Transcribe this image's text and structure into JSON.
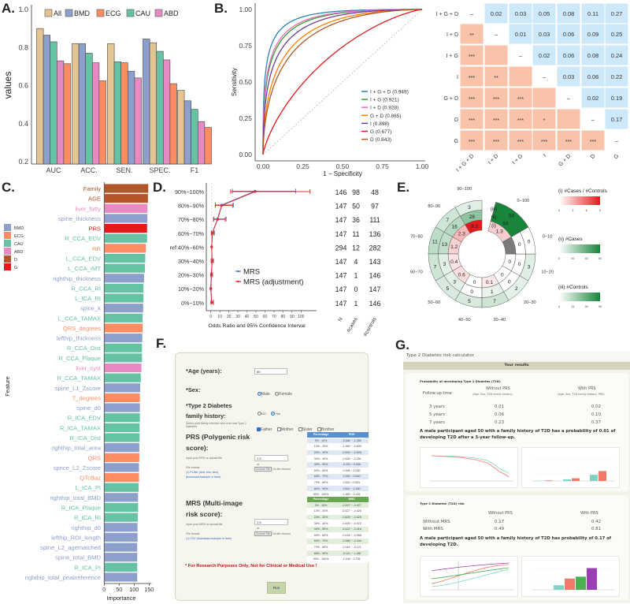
{
  "panel_labels": {
    "A": "A.",
    "B": "B.",
    "C": "C.",
    "D": "D.",
    "E": "E.",
    "F": "F.",
    "G": "G."
  },
  "chart_data": [
    {
      "id": "A",
      "type": "bar",
      "title": "",
      "xlabel": "",
      "ylabel": "values",
      "ylim": [
        0.2,
        1.0
      ],
      "yticks": [
        "0.2",
        "0.4",
        "0.6",
        "0.8",
        "1.0"
      ],
      "legend_position": "top",
      "legend": [
        "All",
        "BMD",
        "ECG",
        "CAU",
        "ABD"
      ],
      "colors": {
        "All": "#e5c494",
        "BMD": "#8da0cb",
        "ECG": "#fc8d62",
        "CAU": "#66c2a5",
        "ABD": "#e78ac3"
      },
      "categories": [
        "AUC",
        "ACC.",
        "SEN.",
        "SPEC.",
        "F1"
      ],
      "groups": [
        {
          "category": "AUC",
          "bars": [
            [
              "All",
              0.9
            ],
            [
              "BMD",
              0.865
            ],
            [
              "CAU",
              0.83
            ],
            [
              "ABD",
              0.73
            ],
            [
              "ECG",
              0.715
            ]
          ]
        },
        {
          "category": "ACC.",
          "bars": [
            [
              "All",
              0.82
            ],
            [
              "BMD",
              0.82
            ],
            [
              "CAU",
              0.77
            ],
            [
              "ABD",
              0.72
            ],
            [
              "ECG",
              0.625
            ]
          ]
        },
        {
          "category": "SEN.",
          "bars": [
            [
              "All",
              0.82
            ],
            [
              "CAU",
              0.725
            ],
            [
              "ECG",
              0.72
            ],
            [
              "BMD",
              0.675
            ],
            [
              "ABD",
              0.64
            ]
          ]
        },
        {
          "category": "SPEC.",
          "bars": [
            [
              "BMD",
              0.845
            ],
            [
              "All",
              0.825
            ],
            [
              "CAU",
              0.78
            ],
            [
              "ABD",
              0.735
            ],
            [
              "ECG",
              0.61
            ]
          ]
        },
        {
          "category": "F1",
          "bars": [
            [
              "All",
              0.575
            ],
            [
              "BMD",
              0.52
            ],
            [
              "CAU",
              0.475
            ],
            [
              "ABD",
              0.41
            ],
            [
              "ECG",
              0.38
            ]
          ]
        }
      ]
    },
    {
      "id": "B",
      "type": "line",
      "xlabel": "1 − Specificity",
      "ylabel": "Sensitivity",
      "xlim": [
        0,
        1
      ],
      "ylim": [
        0,
        1
      ],
      "xticks": [
        "0.00",
        "0.25",
        "0.50",
        "0.75",
        "1.00"
      ],
      "yticks": [
        "0.00",
        "0.25",
        "0.50",
        "0.75",
        "1.00"
      ],
      "legend_position": "bottom-right",
      "series": [
        {
          "name": "I + G + D (0.949)",
          "auc": 0.949,
          "color": "#2f7fc1"
        },
        {
          "name": "I + G (0.921)",
          "auc": 0.921,
          "color": "#33a02c"
        },
        {
          "name": "I + D (0.928)",
          "auc": 0.928,
          "color": "#f06bbf"
        },
        {
          "name": "G + D (0.865)",
          "auc": 0.865,
          "color": "#ff7f00"
        },
        {
          "name": "I (0.898)",
          "auc": 0.898,
          "color": "#6a3d9a"
        },
        {
          "name": "G (0.677)",
          "auc": 0.677,
          "color": "#e31a1c"
        },
        {
          "name": "D (0.843)",
          "auc": 0.843,
          "color": "#b15928"
        }
      ]
    },
    {
      "id": "B-heatmap",
      "type": "heatmap",
      "rows": [
        "I + G + D",
        "I + D",
        "I + G",
        "I",
        "G + D",
        "D",
        "G"
      ],
      "cols": [
        "I + G + D",
        "I + D",
        "I + G",
        "I",
        "G + D",
        "D",
        "G"
      ],
      "cells": [
        [
          "–",
          "0.02",
          "0.03",
          "0.05",
          "0.08",
          "0.11",
          "0.27"
        ],
        [
          "**",
          "–",
          "0.01",
          "0.03",
          "0.06",
          "0.09",
          "0.25"
        ],
        [
          "***",
          "",
          "–",
          "0.02",
          "0.06",
          "0.08",
          "0.24"
        ],
        [
          "***",
          "**",
          "",
          "–",
          "0.03",
          "0.06",
          "0.22"
        ],
        [
          "***",
          "***",
          "***",
          "",
          "–",
          "0.02",
          "0.19"
        ],
        [
          "***",
          "***",
          "***",
          "*",
          "",
          "–",
          "0.17"
        ],
        [
          "***",
          "***",
          "***",
          "***",
          "***",
          "***",
          "–"
        ]
      ],
      "colors": {
        "upper": "#cde8f8",
        "lower": "#f9c3aa"
      }
    },
    {
      "id": "C",
      "type": "bar",
      "orientation": "horizontal",
      "xlabel": "Importance",
      "ylabel": "Feature",
      "xlim": [
        0,
        150
      ],
      "xticks": [
        "0",
        "50",
        "100",
        "150"
      ],
      "legend_position": "left",
      "legend": [
        "BMD",
        "ECG",
        "CAU",
        "ABD",
        "D",
        "G"
      ],
      "colors": {
        "BMD": "#8da0cb",
        "ECG": "#fc8d62",
        "CAU": "#66c2a5",
        "ABD": "#e78ac3",
        "D": "#b5562a",
        "G": "#e31a1c"
      },
      "features": [
        [
          "Family",
          "D",
          146
        ],
        [
          "AGE",
          "D",
          145
        ],
        [
          "liver_fatty",
          "ABD",
          143
        ],
        [
          "spine_thickness",
          "BMD",
          143
        ],
        [
          "PRS",
          "G",
          142
        ],
        [
          "R_CCA_EDV",
          "CAU",
          142
        ],
        [
          "RR",
          "ECG",
          138
        ],
        [
          "L_CCA_EDV",
          "CAU",
          136
        ],
        [
          "L_CCA_IMT",
          "CAU",
          135
        ],
        [
          "righthip_thickness",
          "BMD",
          132
        ],
        [
          "R_CCA_RI",
          "CAU",
          130
        ],
        [
          "L_ICA_RI",
          "CAU",
          130
        ],
        [
          "spine_k",
          "BMD",
          129
        ],
        [
          "L_CCA_TAMAX",
          "CAU",
          127
        ],
        [
          "QRS_degrees",
          "ECG",
          127
        ],
        [
          "lefthip_thickness",
          "BMD",
          126
        ],
        [
          "R_CCA_Dist",
          "CAU",
          125
        ],
        [
          "R_CCA_Plaque",
          "CAU",
          125
        ],
        [
          "liver_cyst",
          "ABD",
          123
        ],
        [
          "R_CCA_TAMAX",
          "CAU",
          121
        ],
        [
          "spine_L1_Zscore",
          "BMD",
          119
        ],
        [
          "T_degrees",
          "ECG",
          118
        ],
        [
          "spine_d0",
          "BMD",
          118
        ],
        [
          "R_ICA_EDV",
          "CAU",
          118
        ],
        [
          "R_ICA_TAMAX",
          "CAU",
          117
        ],
        [
          "R_ICA_Dist",
          "CAU",
          117
        ],
        [
          "righthip_total_area",
          "BMD",
          116
        ],
        [
          "QRS",
          "ECG",
          116
        ],
        [
          "spnce_L2_Zscore",
          "BMD",
          115
        ],
        [
          "QTcBaz",
          "ECG",
          115
        ],
        [
          "L_ICA_PI",
          "CAU",
          114
        ],
        [
          "righthip_total_BMD",
          "BMD",
          112
        ],
        [
          "R_ICA_Plaque",
          "CAU",
          112
        ],
        [
          "R_ICA_RI",
          "CAU",
          111
        ],
        [
          "righthip_d0",
          "BMD",
          110
        ],
        [
          "lefthip_ROI_length",
          "BMD",
          110
        ],
        [
          "spine_L2_agematched",
          "BMD",
          109
        ],
        [
          "spine_total_BMD",
          "BMD",
          109
        ],
        [
          "R_ICA_PI",
          "CAU",
          109
        ],
        [
          "righthip_total_peakreference",
          "BMD",
          109
        ]
      ]
    },
    {
      "id": "D",
      "type": "scatter",
      "xlabel": "Odds Ratio and 95% Confidence Interval",
      "xlim": [
        0,
        110
      ],
      "xticks": [
        "0",
        "10",
        "20",
        "30",
        "40",
        "50",
        "60",
        "70",
        "80",
        "90",
        "100"
      ],
      "legend_position": "bottom-right",
      "table_headers": [
        "N",
        "#cases",
        "#controls"
      ],
      "rows": [
        {
          "label": "90%−100%",
          "N": "146",
          "cases": "98",
          "controls": "48",
          "mrs": [
            49,
            24,
            94
          ],
          "adj": [
            49,
            22,
            110
          ]
        },
        {
          "label": "80%−90%",
          "N": "147",
          "cases": "50",
          "controls": "97",
          "mrs": [
            12,
            5,
            25
          ],
          "adj": [
            12,
            5,
            24
          ]
        },
        {
          "label": "70%−80%",
          "N": "147",
          "cases": "36",
          "controls": "111",
          "mrs": [
            7.5,
            3.5,
            17
          ],
          "adj": [
            7.5,
            3,
            16
          ]
        },
        {
          "label": "60%−70%",
          "N": "147",
          "cases": "11",
          "controls": "136",
          "mrs": [
            1.8,
            0.6,
            4
          ],
          "adj": [
            1.6,
            0.5,
            3.5
          ]
        },
        {
          "label": "ref:40%−60%",
          "N": "294",
          "cases": "12",
          "controls": "282",
          "mrs": [
            1,
            1,
            1
          ],
          "adj": [
            1,
            1,
            1
          ]
        },
        {
          "label": "30%−40%",
          "N": "147",
          "cases": "4",
          "controls": "143",
          "mrs": [
            1.5,
            0.5,
            3
          ],
          "adj": [
            1.4,
            0.4,
            2.8
          ]
        },
        {
          "label": "20%−30%",
          "N": "147",
          "cases": "1",
          "controls": "146",
          "mrs": [
            0.7,
            0.1,
            2
          ],
          "adj": [
            0.6,
            0.1,
            1.8
          ]
        },
        {
          "label": "10%−20%",
          "N": "147",
          "cases": "0",
          "controls": "147",
          "mrs": [
            0,
            0,
            0
          ],
          "adj": [
            0,
            0,
            0
          ]
        },
        {
          "label": "0%−10%",
          "N": "147",
          "cases": "1",
          "controls": "146",
          "mrs": [
            1,
            0.2,
            3
          ],
          "adj": [
            1,
            0.2,
            2.8
          ]
        }
      ],
      "series": [
        {
          "name": "MRS",
          "color": "#3d7ec9"
        },
        {
          "name": "MRS (adjustment)",
          "color": "#e52b2b"
        }
      ]
    },
    {
      "id": "E",
      "type": "heatmap",
      "ring_labels": [
        "(iii)",
        "(ii)",
        "(i)"
      ],
      "sectors": [
        {
          "label": "90−100",
          "ratio": "9.3",
          "cases": "28",
          "controls": "3"
        },
        {
          "label": "80−90",
          "ratio": "2.3",
          "cases": "16",
          "controls": "7"
        },
        {
          "label": "70−80",
          "ratio": "1.2",
          "cases": "13",
          "controls": "11"
        },
        {
          "label": "60−70",
          "ratio": "0.4",
          "cases": "3",
          "controls": "7"
        },
        {
          "label": "50−60",
          "ratio": "0.6",
          "cases": "3",
          "controls": "5"
        },
        {
          "label": "40−50",
          "ratio": "0",
          "cases": "0",
          "controls": "5"
        },
        {
          "label": "30−40",
          "ratio": "0.1",
          "cases": "1",
          "controls": "7"
        },
        {
          "label": "20−30",
          "ratio": "0",
          "cases": "0",
          "controls": "2"
        },
        {
          "label": "10−20",
          "ratio": "0",
          "cases": "0",
          "controls": "3"
        },
        {
          "label": "0−10",
          "ratio": null,
          "cases": "0",
          "controls": "0"
        },
        {
          "label": "0−100",
          "ratio": "1.3",
          "cases": "64",
          "controls": "50"
        }
      ],
      "legends": [
        {
          "title": "(i) #Cases / #Controls",
          "ticks": [
            "0",
            "3",
            "6",
            "9"
          ],
          "max": 9,
          "color": "#e31a1c"
        },
        {
          "title": "(ii) #Cases",
          "ticks": [
            "0",
            "20",
            "40",
            "64"
          ],
          "max": 64,
          "color": "#17853a"
        },
        {
          "title": "(iii) #Controls",
          "ticks": [
            "0",
            "15",
            "30",
            "50"
          ],
          "max": 50,
          "color": "#17853a"
        }
      ],
      "na_color": "#7b7b7d"
    }
  ],
  "calculator_form": {
    "age_label": "*Age (years):",
    "age_value": "50",
    "sex_label": "*Sex:",
    "sex_options": [
      "Male",
      "Female"
    ],
    "sex_selected": "Male",
    "family_label_1": "*Type 2 Diabetes",
    "family_label_2": "family history:",
    "family_options": [
      "NO",
      "Yes"
    ],
    "family_selected": "Yes",
    "family_member_hint": "Select your family member who ever had Type 2 Diabetes",
    "family_members": [
      "Father",
      "Mother",
      "Sister",
      "Brother"
    ],
    "prs_title_1": "PRS (Polygenic risk",
    "prs_title_2": "score):",
    "prs_input_hint": "Input your PRS or upload file",
    "prs_value": "1.5",
    "or": "or",
    "choose_file": "Choose File",
    "no_file": "No file chosen",
    "file_format": "File format:",
    "prs_format": "(1) PLINK (bed, bim, fam)",
    "prs_download": "(download example in here)",
    "prs_table": {
      "headers": [
        "Percentage",
        "PRS"
      ],
      "rows": [
        [
          "0% - 10%",
          "-3.488 ~ -1.280"
        ],
        [
          "10% - 20%",
          "-1.280 ~ -0.839"
        ],
        [
          "20% - 30%",
          "-0.839 ~ -0.528"
        ],
        [
          "30% - 40%",
          "-0.528 ~ -0.251"
        ],
        [
          "40% - 50%",
          "-0.251 ~ 0.006"
        ],
        [
          "50% - 60%",
          "0.006 ~ 0.250"
        ],
        [
          "60% - 70%",
          "0.250 ~ 0.520"
        ],
        [
          "70% - 80%",
          "0.520 ~ 0.831"
        ],
        [
          "80% - 90%",
          "0.831 ~ 1.280"
        ],
        [
          "90% - 100%",
          "1.280 ~ 3.145"
        ]
      ]
    },
    "mrs_title_1": "MRS (Multi-image",
    "mrs_title_2": "risk score):",
    "mrs_input_hint": "Input your MRS or upload file",
    "mrs_value": "1.5",
    "mrs_format": "(1) CSV (download example in here)",
    "mrs_table": {
      "headers": [
        "Percentage",
        "MRS"
      ],
      "rows": [
        [
          "0% - 10%",
          "-0.427 ~ -0.427"
        ],
        [
          "10% - 20%",
          "-0.427 ~ -0.426"
        ],
        [
          "20% - 30%",
          "-0.426 ~ -0.425"
        ],
        [
          "30% - 40%",
          "-0.425 ~ -0.422"
        ],
        [
          "40% - 50%",
          "-0.422 ~ -0.416"
        ],
        [
          "50% - 60%",
          "-0.416 ~ -0.388"
        ],
        [
          "60% - 70%",
          "-0.388 ~ -0.344"
        ],
        [
          "70% - 80%",
          "-0.344 ~ -0.121"
        ],
        [
          "80% - 90%",
          "-0.121 ~ 1.198"
        ],
        [
          "90% - 100%",
          "1.198 ~ 3.795"
        ]
      ]
    },
    "warning": "* For Research Purposes Only, Not for Clinical or Medical Use !",
    "run_label": "Run"
  },
  "calculator_results": {
    "app_title": "Type 2 Diabetes risk calculator",
    "results_header": "Your results",
    "prob_title": "Probability of developing Type 2 Diabetes (T2D)",
    "prob_headers": [
      "Follow-up time",
      "Without PRS",
      "(Age, Sex, T2D family history)",
      "With PRS",
      "(Age, Sex, T2D family history, PRS)"
    ],
    "prob_rows": [
      [
        "3 years",
        "0.01",
        "0.02"
      ],
      [
        "5 years",
        "0.06",
        "0.10"
      ],
      [
        "7 years",
        "0.23",
        "0.37"
      ]
    ],
    "prob_sentence": "A male participant aged 50 with a family history of T2D has a probability of 0.01 of developing T2D after a 3-year follow-up.",
    "risk_title": "Type 2 Diabetes (T2D) risk",
    "risk_headers": [
      "Without PRS",
      "With PRS"
    ],
    "risk_rows": [
      [
        "Without MRS",
        "0.17",
        "0.42"
      ],
      [
        "With MRS",
        "0.49",
        "0.81"
      ]
    ],
    "risk_sentence": "A male participant aged 50 with a family history of T2D has probability of 0.17 of developing T2D.",
    "colors": {
      "without": "#7fd3c4",
      "with": "#ef7a6a",
      "green": "#4caf50",
      "purple": "#9b3fb5"
    }
  }
}
